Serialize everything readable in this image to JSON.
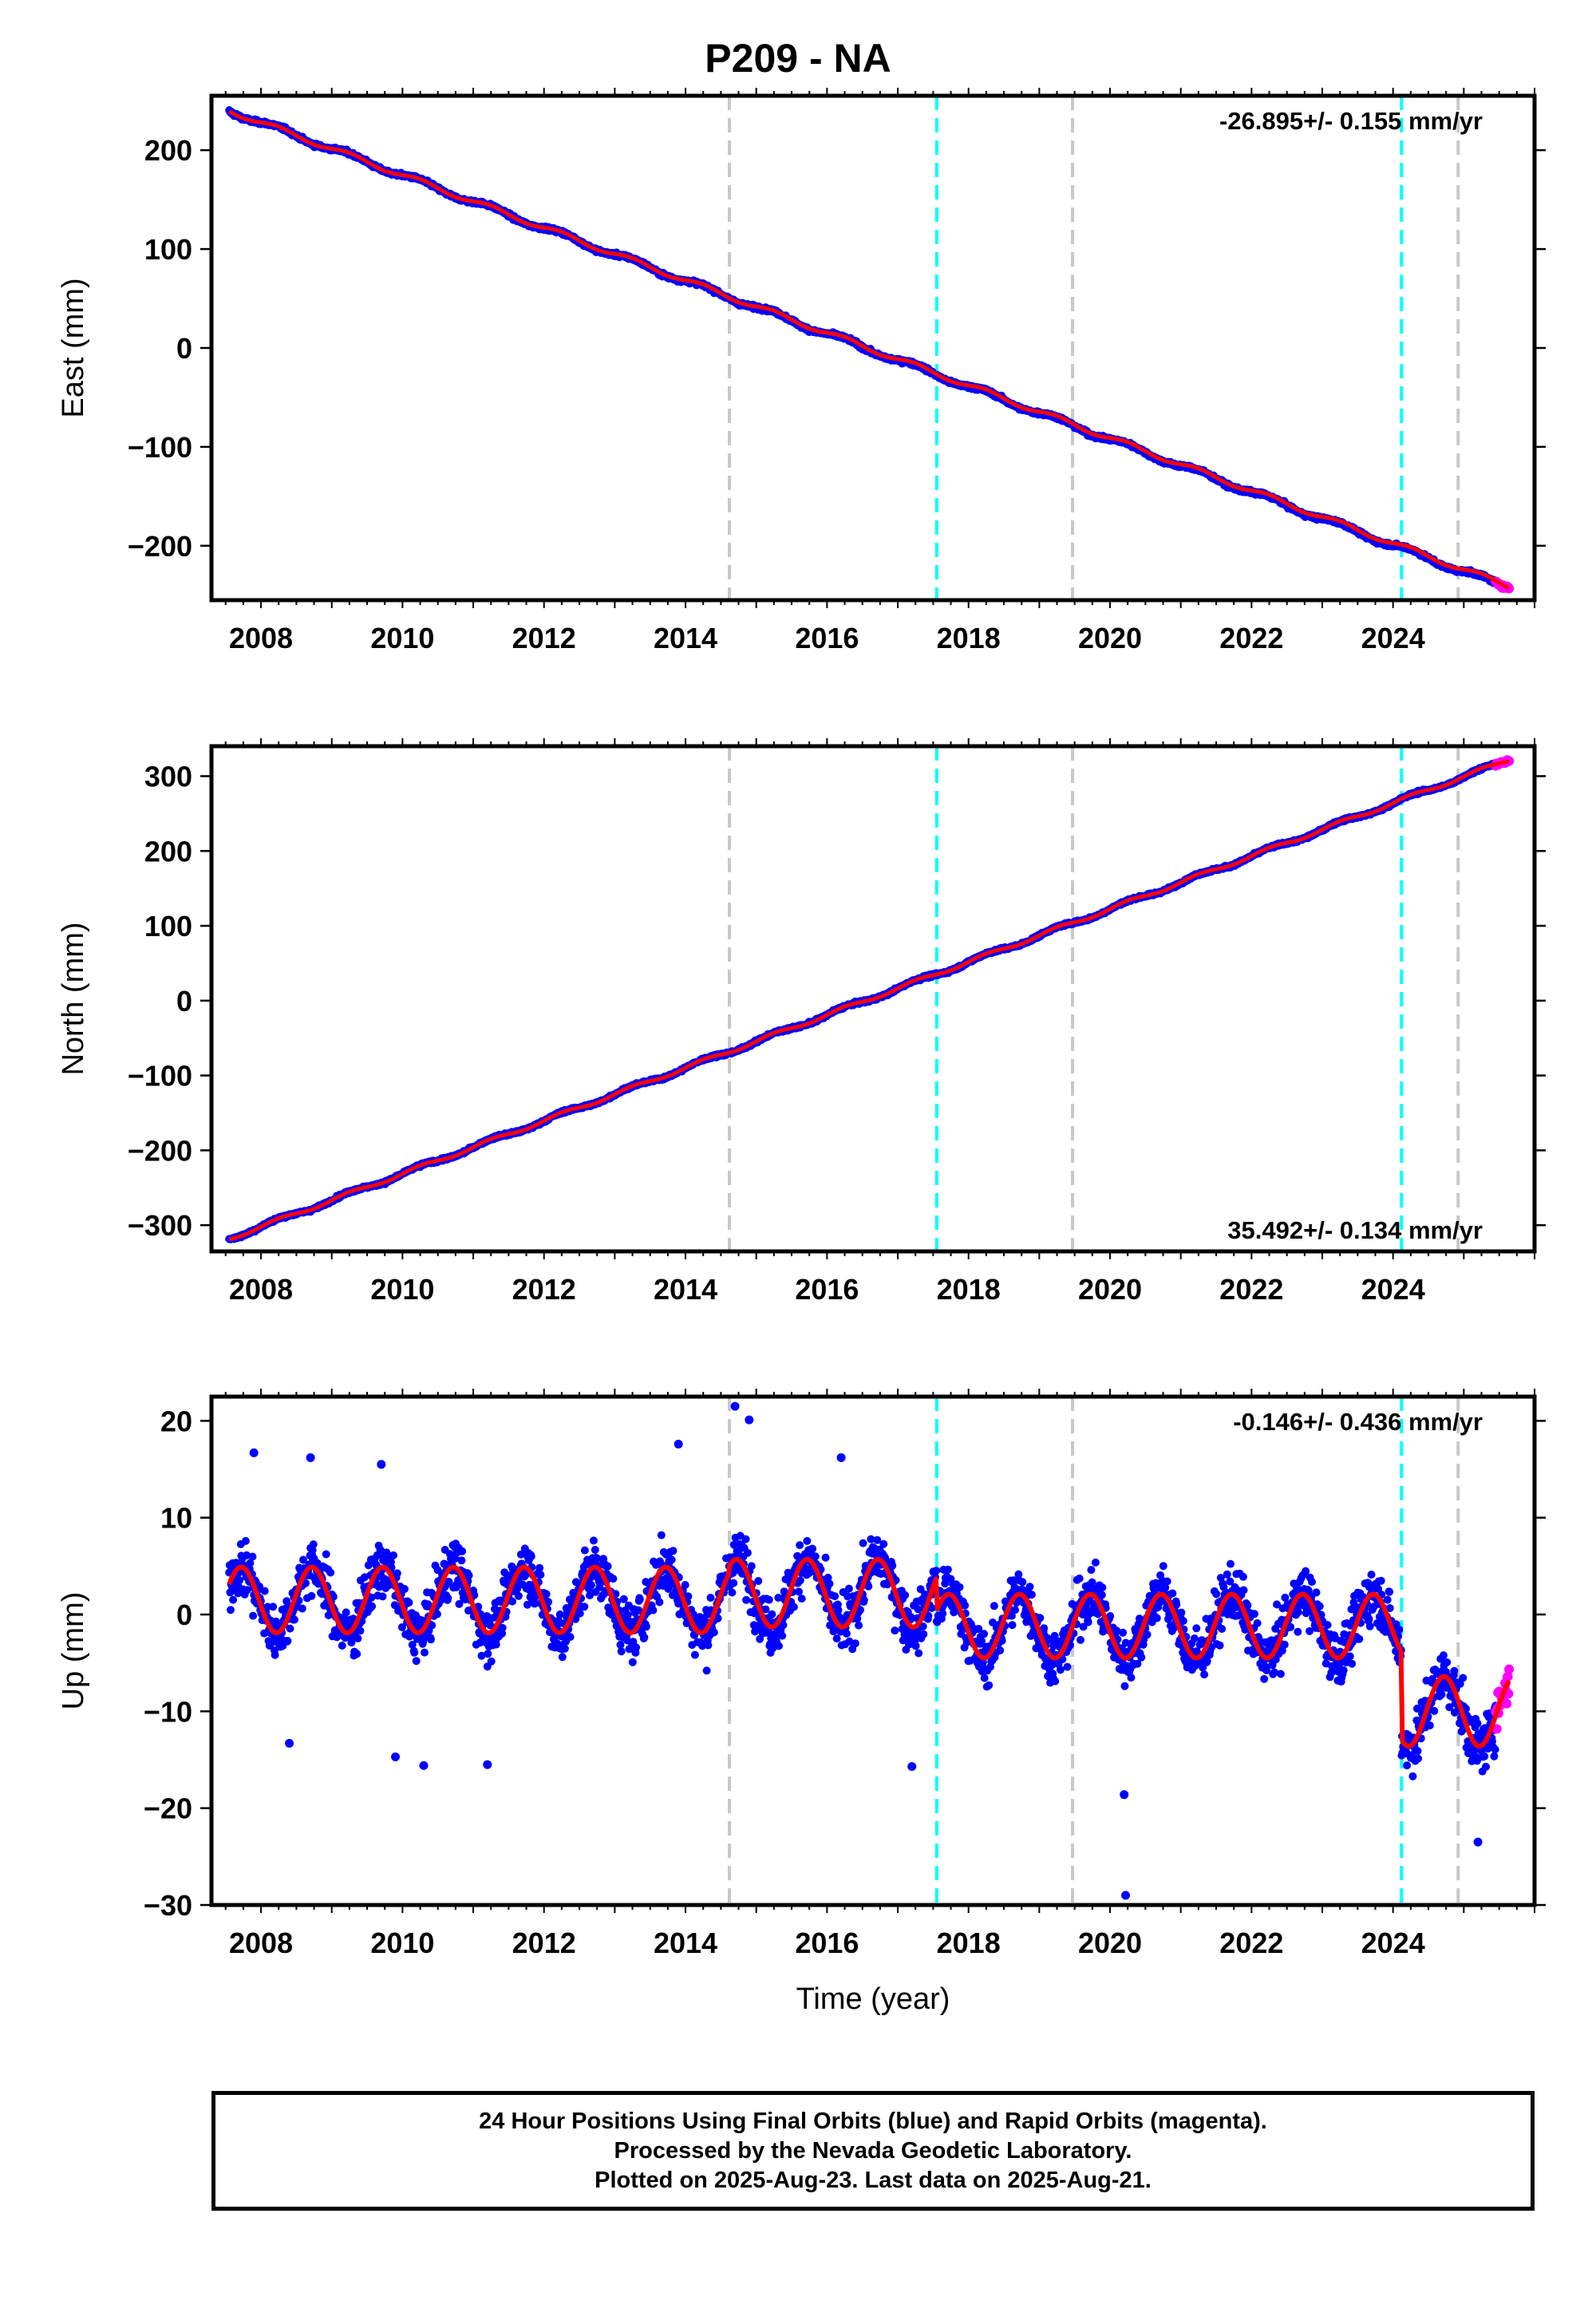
{
  "title": "P209 - NA",
  "footer": {
    "line1": "24 Hour Positions Using Final Orbits (blue) and Rapid Orbits (magenta).",
    "line2": "Processed by the Nevada Geodetic Laboratory.",
    "line3": "Plotted on 2025-Aug-23. Last data on 2025-Aug-21."
  },
  "colors": {
    "final_orbits": "#0000ff",
    "rapid_orbits": "#ff00ff",
    "model_fit": "#ff0000",
    "equipment_change_line": "#c8c8c8",
    "earthquake_line": "#00ffff"
  },
  "chart_data": [
    {
      "type": "scatter",
      "title": "P209 - NA",
      "ylabel": "East (mm)",
      "xlabel": "",
      "xlim": [
        2007.3,
        2026.0
      ],
      "ylim": [
        -255,
        255
      ],
      "x_ticks": [
        "2008",
        "2010",
        "2012",
        "2014",
        "2016",
        "2018",
        "2020",
        "2022",
        "2024"
      ],
      "y_ticks": [
        -200,
        -100,
        0,
        100,
        200
      ],
      "rate_label": "-26.895+/- 0.155 mm/yr",
      "rate_position": "top-right",
      "grid": false,
      "series": [
        {
          "name": "Final Orbits (blue)",
          "x_start": 2007.55,
          "x_end": 2025.45,
          "trend_start": 240,
          "trend_end": -238
        },
        {
          "name": "Rapid Orbits (magenta)",
          "x_start": 2025.45,
          "x_end": 2025.64,
          "trend_start": -238,
          "trend_end": -241
        }
      ],
      "model_fit": {
        "x": [
          2007.55,
          2025.64
        ],
        "y": [
          240,
          -241
        ],
        "annual_amplitude": 2.5
      }
    },
    {
      "type": "scatter",
      "title": "",
      "ylabel": "North (mm)",
      "xlabel": "",
      "xlim": [
        2007.3,
        2026.0
      ],
      "ylim": [
        -335,
        340
      ],
      "x_ticks": [
        "2008",
        "2010",
        "2012",
        "2014",
        "2016",
        "2018",
        "2020",
        "2022",
        "2024"
      ],
      "y_ticks": [
        -300,
        -200,
        -100,
        0,
        100,
        200,
        300
      ],
      "rate_label": "35.492+/- 0.134 mm/yr",
      "rate_position": "bottom-right",
      "grid": false,
      "series": [
        {
          "name": "Final Orbits (blue)",
          "x_start": 2007.55,
          "x_end": 2025.45,
          "trend_start": -318,
          "trend_end": 315
        },
        {
          "name": "Rapid Orbits (magenta)",
          "x_start": 2025.45,
          "x_end": 2025.64,
          "trend_start": 315,
          "trend_end": 322
        }
      ],
      "model_fit": {
        "x": [
          2007.55,
          2025.64
        ],
        "y": [
          -318,
          322
        ],
        "annual_amplitude": 2.5
      }
    },
    {
      "type": "scatter",
      "title": "",
      "ylabel": "Up (mm)",
      "xlabel": "Time (year)",
      "xlim": [
        2007.3,
        2026.0
      ],
      "ylim": [
        -30,
        22.5
      ],
      "x_ticks": [
        "2008",
        "2010",
        "2012",
        "2014",
        "2016",
        "2018",
        "2020",
        "2022",
        "2024"
      ],
      "y_ticks": [
        -30,
        -20,
        -10,
        0,
        10,
        20
      ],
      "rate_label": "-0.146+/- 0.436 mm/yr",
      "rate_position": "top-right",
      "grid": false,
      "series": [
        {
          "name": "Final Orbits (blue)",
          "x_start": 2007.55,
          "x_end": 2025.45,
          "scatter_sd": 3.5
        },
        {
          "name": "Rapid Orbits (magenta)",
          "x_start": 2025.45,
          "x_end": 2025.64,
          "scatter_sd": 3.5
        }
      ],
      "model_fit": {
        "segments": [
          {
            "x_start": 2007.55,
            "x_end": 2014.62,
            "offset": 1.5,
            "amplitude": 3.4
          },
          {
            "x_start": 2014.62,
            "x_end": 2017.55,
            "offset": 2.2,
            "amplitude": 3.5
          },
          {
            "x_start": 2017.55,
            "x_end": 2024.12,
            "offset": -1.2,
            "amplitude": 3.3
          },
          {
            "x_start": 2024.12,
            "x_end": 2025.64,
            "offset": -10.0,
            "amplitude": 3.6
          }
        ],
        "phase_peak_year_fraction": 0.72
      },
      "outliers": [
        {
          "x": 2007.9,
          "y": 16.7
        },
        {
          "x": 2008.4,
          "y": -13.3
        },
        {
          "x": 2008.7,
          "y": 16.2
        },
        {
          "x": 2009.7,
          "y": 15.5
        },
        {
          "x": 2009.9,
          "y": -14.7
        },
        {
          "x": 2010.3,
          "y": -15.6
        },
        {
          "x": 2011.2,
          "y": -15.5
        },
        {
          "x": 2013.9,
          "y": 17.6
        },
        {
          "x": 2014.7,
          "y": 21.5
        },
        {
          "x": 2014.9,
          "y": 20.1
        },
        {
          "x": 2016.2,
          "y": 16.2
        },
        {
          "x": 2017.2,
          "y": -15.7
        },
        {
          "x": 2020.2,
          "y": -18.6
        },
        {
          "x": 2020.22,
          "y": -29.0
        },
        {
          "x": 2025.2,
          "y": -23.5
        }
      ]
    }
  ],
  "event_lines": [
    {
      "x": 2014.62,
      "kind": "equipment"
    },
    {
      "x": 2017.55,
      "kind": "earthquake"
    },
    {
      "x": 2019.47,
      "kind": "equipment"
    },
    {
      "x": 2024.12,
      "kind": "earthquake"
    },
    {
      "x": 2024.92,
      "kind": "equipment"
    }
  ]
}
